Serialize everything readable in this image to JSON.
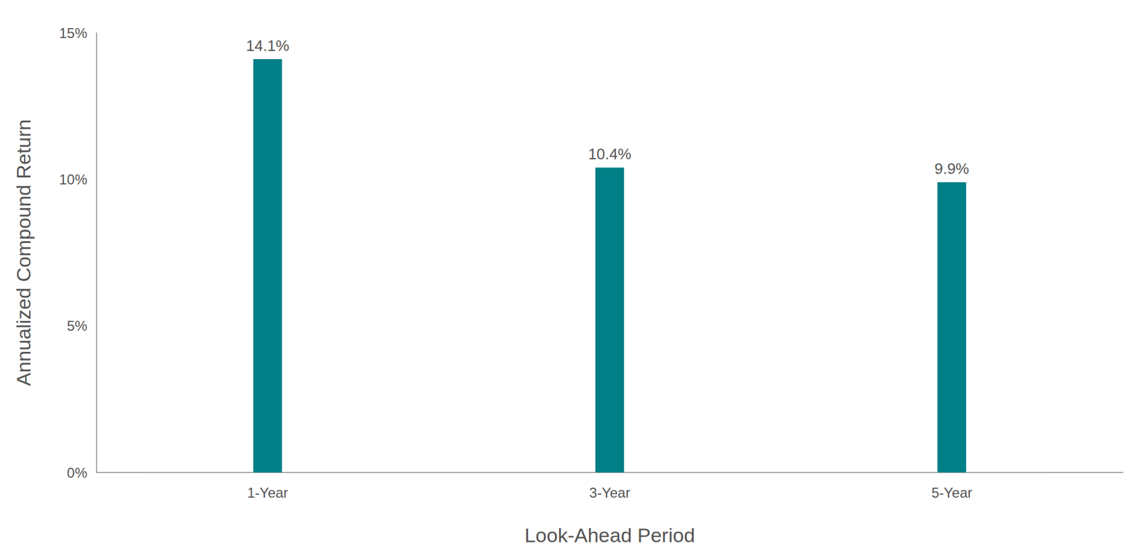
{
  "chart_data": {
    "type": "bar",
    "x_label": "Look-Ahead Period",
    "y_label": "Annualized Compound Return",
    "categories": [
      "1-Year",
      "3-Year",
      "5-Year"
    ],
    "values": [
      14.1,
      10.4,
      9.9
    ],
    "value_labels": [
      "14.1%",
      "10.4%",
      "9.9%"
    ],
    "color": "#007f86",
    "ylim": [
      0,
      15
    ],
    "yticks": [
      {
        "value": 0,
        "label": "0%"
      },
      {
        "value": 5,
        "label": "5%"
      },
      {
        "value": 10,
        "label": "10%"
      },
      {
        "value": 15,
        "label": "15%"
      }
    ],
    "grid": false,
    "data_labels": true
  }
}
